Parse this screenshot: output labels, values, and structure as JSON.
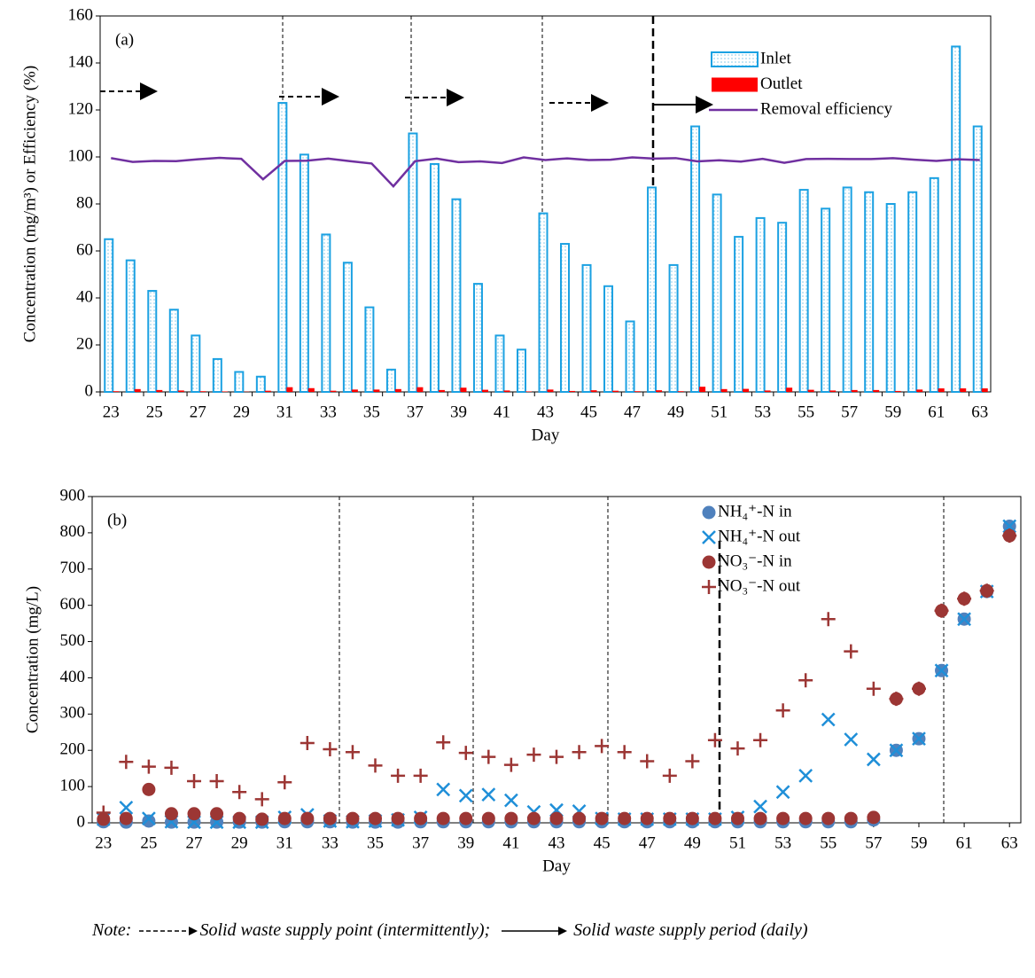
{
  "chart_data": [
    {
      "type": "bar",
      "panel_label": "(a)",
      "x_label": "Day",
      "y_label": "Concentration (mg/m³) or Efficiency (%)",
      "categories": [
        23,
        null,
        25,
        null,
        27,
        null,
        29,
        null,
        31,
        null,
        33,
        null,
        35,
        null,
        37,
        null,
        39,
        null,
        41,
        null,
        43,
        null,
        45,
        null,
        47,
        null,
        49,
        null,
        51,
        null,
        53,
        null,
        55,
        null,
        57,
        null,
        59,
        null,
        61,
        null,
        63
      ],
      "series": [
        {
          "name": "Inlet",
          "color": "#1BA1E2",
          "values": [
            65,
            56,
            43,
            35,
            24,
            14,
            8.5,
            6.5,
            123,
            101,
            67,
            55,
            36,
            9.5,
            110,
            97,
            82,
            46,
            24,
            18,
            76,
            63,
            54,
            45,
            30,
            87,
            54,
            113,
            84,
            66,
            74,
            72,
            86,
            78,
            87,
            85,
            80,
            85,
            91,
            147,
            113
          ]
        },
        {
          "name": "Outlet",
          "color": "#FF0000",
          "values": [
            0.3,
            1.2,
            0.8,
            0.6,
            0.3,
            0.2,
            0.1,
            0.5,
            2,
            1.6,
            0.5,
            1,
            1,
            1.2,
            2,
            0.8,
            1.8,
            0.9,
            0.6,
            0.2,
            1,
            0.4,
            0.7,
            0.5,
            0.3,
            0.7,
            0.3,
            2.2,
            1.2,
            1.3,
            0.6,
            1.8,
            0.9,
            0.6,
            0.8,
            0.8,
            0.4,
            1,
            1.5,
            1.5,
            1.5
          ]
        },
        {
          "name": "Removal efficiency",
          "type": "line",
          "color": "#7030A0",
          "values": [
            99.5,
            97.9,
            98.3,
            98.2,
            99,
            99.6,
            99.2,
            90.5,
            98.3,
            98.4,
            99.3,
            98.2,
            97.2,
            87.5,
            98.2,
            99.3,
            97.8,
            98.1,
            97.4,
            99.8,
            98.7,
            99.4,
            98.7,
            98.8,
            99.8,
            99.3,
            99.5,
            98.1,
            98.6,
            98,
            99.2,
            97.5,
            99.1,
            99.2,
            99.1,
            99.1,
            99.5,
            98.8,
            98.3,
            99,
            98.7
          ]
        }
      ],
      "ylim": [
        0,
        160
      ],
      "yticks": [
        0,
        20,
        40,
        60,
        80,
        100,
        120,
        140,
        160
      ]
    },
    {
      "type": "scatter",
      "panel_label": "(b)",
      "x_label": "Day",
      "y_label": "Concentration (mg/L)",
      "x": [
        23,
        24,
        25,
        26,
        27,
        28,
        29,
        30,
        31,
        32,
        33,
        34,
        35,
        36,
        37,
        38,
        39,
        40,
        41,
        42,
        43,
        44,
        45,
        46,
        47,
        48,
        49,
        50,
        51,
        52,
        53,
        54,
        55,
        56,
        57,
        58,
        59,
        60,
        61,
        62,
        63
      ],
      "series": [
        {
          "name": "NH₄⁺-N in",
          "color": "#4F81BD",
          "marker": "circle",
          "values": [
            3,
            2,
            5,
            2,
            2,
            2,
            2,
            2,
            3,
            3,
            3,
            2,
            2,
            2,
            3,
            3,
            3,
            3,
            3,
            3,
            3,
            3,
            3,
            3,
            3,
            3,
            3,
            3,
            3,
            3,
            3,
            3,
            3,
            3,
            8,
            200,
            232,
            420,
            562,
            638,
            818
          ]
        },
        {
          "name": "NH₄⁺-N out",
          "color": "#1F8FD8",
          "marker": "x",
          "values": [
            10,
            42,
            12,
            3,
            2,
            2,
            2,
            2,
            15,
            22,
            5,
            3,
            5,
            8,
            15,
            92,
            75,
            78,
            62,
            30,
            35,
            32,
            12,
            10,
            10,
            10,
            10,
            10,
            15,
            45,
            85,
            130,
            285,
            230,
            175,
            200,
            232,
            420,
            562,
            638,
            818
          ]
        },
        {
          "name": "NO₃⁻-N in",
          "color": "#9C3634",
          "marker": "circle",
          "values": [
            10,
            12,
            92,
            25,
            25,
            25,
            12,
            10,
            12,
            12,
            12,
            12,
            12,
            12,
            12,
            12,
            12,
            12,
            12,
            12,
            12,
            12,
            12,
            12,
            12,
            12,
            12,
            12,
            12,
            12,
            12,
            12,
            12,
            12,
            15,
            342,
            370,
            585,
            618,
            640,
            792
          ]
        },
        {
          "name": "NO₃⁻-N out",
          "color": "#9C3634",
          "marker": "plus",
          "values": [
            28,
            168,
            155,
            152,
            115,
            115,
            85,
            65,
            112,
            220,
            203,
            195,
            158,
            130,
            130,
            222,
            193,
            182,
            160,
            188,
            182,
            195,
            212,
            195,
            170,
            130,
            170,
            228,
            205,
            228,
            310,
            393,
            562,
            473,
            370,
            342,
            370,
            585,
            618,
            640,
            792
          ]
        }
      ],
      "xlim": [
        22.5,
        63.5
      ],
      "xticks": [
        23,
        25,
        27,
        29,
        31,
        33,
        35,
        37,
        39,
        41,
        43,
        45,
        47,
        49,
        51,
        53,
        55,
        57,
        59,
        61,
        63
      ],
      "ylim": [
        0,
        900
      ],
      "yticks": [
        0,
        100,
        200,
        300,
        400,
        500,
        600,
        700,
        800,
        900
      ]
    }
  ],
  "note": {
    "label": "Note:",
    "point": "Solid waste supply point (intermittently);",
    "period": "Solid waste supply period (daily)"
  }
}
